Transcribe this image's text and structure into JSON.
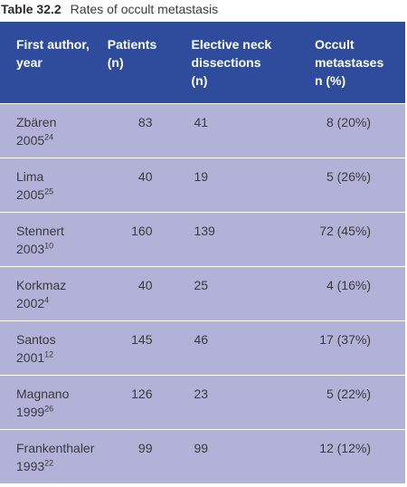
{
  "caption": {
    "label": "Table 32.2",
    "title": "Rates of occult metastasis"
  },
  "headers": [
    {
      "line1": "First author,",
      "line2": "year",
      "line3": ""
    },
    {
      "line1": "Patients",
      "line2": "(n)",
      "line3": ""
    },
    {
      "line1": "Elective neck",
      "line2": "dissections",
      "line3": "(n)"
    },
    {
      "line1": "Occult",
      "line2": "metastases",
      "line3": "n (%)"
    }
  ],
  "rows": [
    {
      "author": "Zbären",
      "year": "2005",
      "ref": "24",
      "patients": "83",
      "dissections": "41",
      "occult": "8 (20%)"
    },
    {
      "author": "Lima",
      "year": "2005",
      "ref": "25",
      "patients": "40",
      "dissections": "19",
      "occult": "5 (26%)"
    },
    {
      "author": "Stennert",
      "year": "2003",
      "ref": "10",
      "patients": "160",
      "dissections": "139",
      "occult": "72 (45%)"
    },
    {
      "author": "Korkmaz",
      "year": "2002",
      "ref": "4",
      "patients": "40",
      "dissections": "25",
      "occult": "4 (16%)"
    },
    {
      "author": "Santos",
      "year": "2001",
      "ref": "12",
      "patients": "145",
      "dissections": "46",
      "occult": "17 (37%)"
    },
    {
      "author": "Magnano",
      "year": "1999",
      "ref": "26",
      "patients": "126",
      "dissections": "23",
      "occult": "5 (22%)"
    },
    {
      "author": "Frankenthaler",
      "year": "1993",
      "ref": "22",
      "patients": "99",
      "dissections": "99",
      "occult": "12 (12%)"
    }
  ]
}
